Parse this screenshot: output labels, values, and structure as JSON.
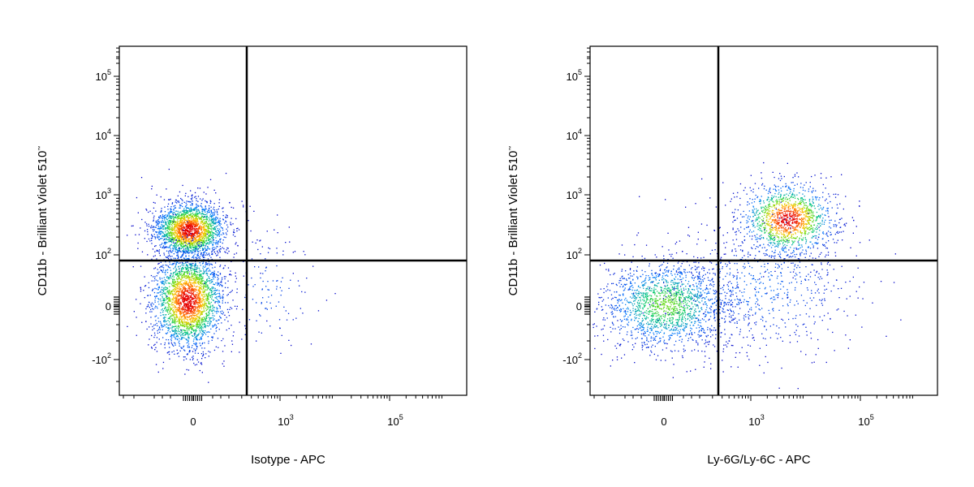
{
  "chart_data": [
    {
      "type": "scatter",
      "subtype": "flow-cytometry-density-dot-plot",
      "xlabel": "Isotype - APC",
      "ylabel": "CD11b - Brilliant Violet 510",
      "ylabel_mark": "™",
      "x_scale": "biexponential",
      "y_scale": "biexponential",
      "x_tick_labels": [
        {
          "base": "0",
          "exp": "",
          "value": 0
        },
        {
          "base": "10",
          "exp": "3",
          "value": 1000
        },
        {
          "base": "10",
          "exp": "5",
          "value": 100000
        }
      ],
      "y_tick_labels": [
        {
          "base": "-10",
          "exp": "2",
          "value": -100
        },
        {
          "base": "0",
          "exp": "",
          "value": 0
        },
        {
          "base": "10",
          "exp": "2",
          "value": 100
        },
        {
          "base": "10",
          "exp": "3",
          "value": 1000
        },
        {
          "base": "10",
          "exp": "4",
          "value": 10000
        },
        {
          "base": "10",
          "exp": "5",
          "value": 100000
        }
      ],
      "gates": {
        "x": 300,
        "y": 80
      },
      "populations": [
        {
          "name": "",
          "x": -5,
          "y": 250,
          "events_share": 0.45
        },
        {
          "name": "",
          "x": -5,
          "y": 5,
          "events_share": 0.52
        },
        {
          "name": "",
          "x": 900,
          "y": 10,
          "events_share": 0.03
        }
      ]
    },
    {
      "type": "scatter",
      "subtype": "flow-cytometry-density-dot-plot",
      "xlabel": "Ly-6G/Ly-6C - APC",
      "ylabel": "CD11b - Brilliant Violet 510",
      "ylabel_mark": "™",
      "x_scale": "biexponential",
      "y_scale": "biexponential",
      "x_tick_labels": [
        {
          "base": "0",
          "exp": "",
          "value": 0
        },
        {
          "base": "10",
          "exp": "3",
          "value": 1000
        },
        {
          "base": "10",
          "exp": "5",
          "value": 100000
        }
      ],
      "y_tick_labels": [
        {
          "base": "-10",
          "exp": "2",
          "value": -100
        },
        {
          "base": "0",
          "exp": "",
          "value": 0
        },
        {
          "base": "10",
          "exp": "2",
          "value": 100
        },
        {
          "base": "10",
          "exp": "3",
          "value": 1000
        },
        {
          "base": "10",
          "exp": "4",
          "value": 10000
        },
        {
          "base": "10",
          "exp": "5",
          "value": 100000
        }
      ],
      "gates": {
        "x": 300,
        "y": 80
      },
      "populations": [
        {
          "name": "",
          "x": 4000,
          "y": 300,
          "events_share": 0.35
        },
        {
          "name": "",
          "x": -5,
          "y": 5,
          "events_share": 0.45
        },
        {
          "name": "",
          "x": 3000,
          "y": 30,
          "events_share": 0.2
        }
      ]
    }
  ]
}
